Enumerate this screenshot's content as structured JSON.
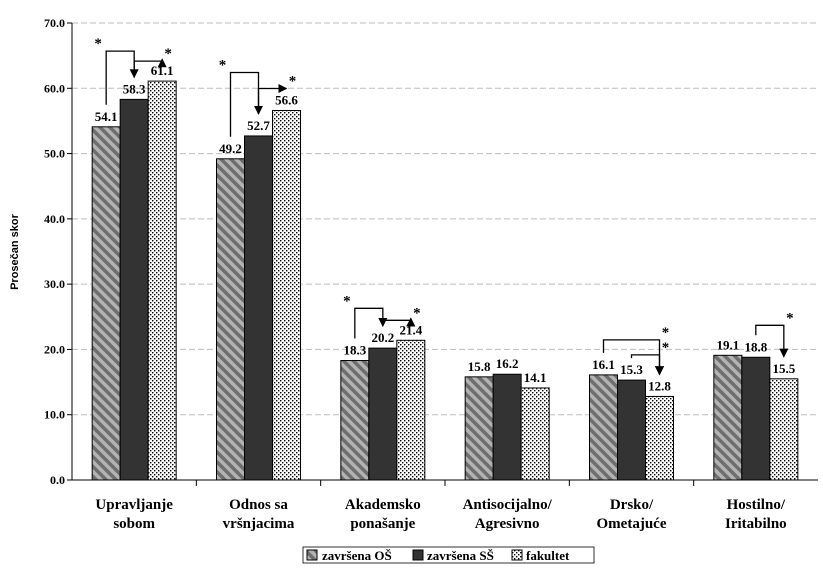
{
  "chart_data": {
    "type": "bar",
    "ylabel": "Prosečan skor",
    "ylim": [
      0,
      70
    ],
    "yticks": [
      "0.0",
      "10.0",
      "20.0",
      "30.0",
      "40.0",
      "50.0",
      "60.0",
      "70.0"
    ],
    "grid": true,
    "legend_position": "bottom",
    "categories": [
      [
        "Upravljanje",
        "sobom"
      ],
      [
        "Odnos sa",
        "vršnjacima"
      ],
      [
        "Akademsko",
        "ponašanje"
      ],
      [
        "Antisocijalno/",
        "Agresivno"
      ],
      [
        "Drsko/",
        "Ometajuće"
      ],
      [
        "Hostilno/",
        "Iritabilno"
      ]
    ],
    "series": [
      {
        "name": "završena OŠ",
        "color": "#8c8c8c",
        "pattern": "diagonal-stripes",
        "values": [
          54.1,
          49.2,
          18.3,
          15.8,
          16.1,
          19.1
        ],
        "labels": [
          "54.1",
          "49.2",
          "18.3",
          "15.8",
          "16.1",
          "19.1"
        ]
      },
      {
        "name": "završena SŠ",
        "color": "#333333",
        "pattern": "solid",
        "values": [
          58.3,
          52.7,
          20.2,
          16.2,
          15.3,
          18.8
        ],
        "labels": [
          "58.3",
          "52.7",
          "20.2",
          "16.2",
          "15.3",
          "18.8"
        ]
      },
      {
        "name": "fakultet",
        "color": "#ffffff",
        "pattern": "dots",
        "values": [
          61.1,
          56.6,
          21.4,
          14.1,
          12.8,
          15.5
        ],
        "labels": [
          "61.1",
          "56.6",
          "21.4",
          "14.1",
          "12.8",
          "15.5"
        ]
      }
    ],
    "significance_marker": "*"
  }
}
